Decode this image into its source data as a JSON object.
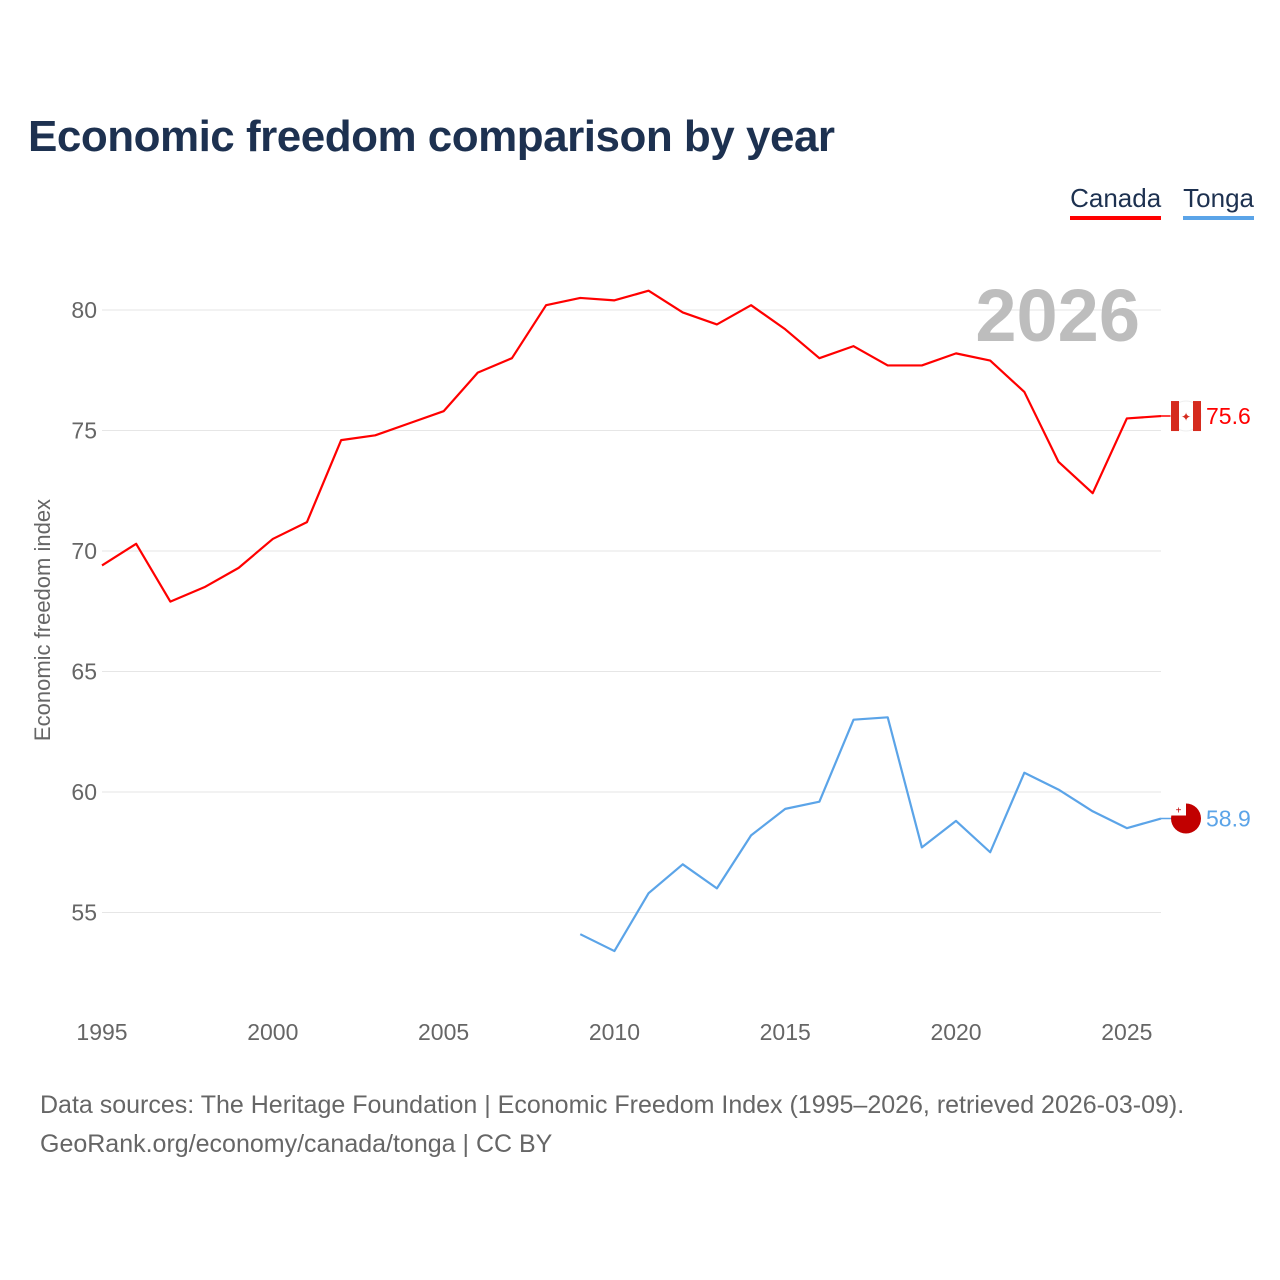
{
  "title": "Economic freedom comparison by year",
  "footer": {
    "line1": "Data sources: The Heritage Foundation | Economic Freedom Index (1995–2026, retrieved 2026-03-09).",
    "line2": "GeoRank.org/economy/canada/tonga | CC BY"
  },
  "chart_data": {
    "type": "line",
    "title": "Economic freedom comparison by year",
    "xlabel": "",
    "ylabel": "Economic freedom index",
    "xlim": [
      1995,
      2026
    ],
    "ylim": [
      51,
      83
    ],
    "x_ticks": [
      "1995",
      "2000",
      "2005",
      "2010",
      "2015",
      "2020",
      "2025"
    ],
    "y_ticks": [
      "55",
      "60",
      "65",
      "70",
      "75",
      "80"
    ],
    "grid": true,
    "legend": "top-right",
    "year_label": "2026",
    "series": [
      {
        "name": "Canada",
        "color": "#ff0000",
        "end_label": "75.6",
        "x": [
          1995,
          1996,
          1997,
          1998,
          1999,
          2000,
          2001,
          2002,
          2003,
          2004,
          2005,
          2006,
          2007,
          2008,
          2009,
          2010,
          2011,
          2012,
          2013,
          2014,
          2015,
          2016,
          2017,
          2018,
          2019,
          2020,
          2021,
          2022,
          2023,
          2024,
          2025,
          2026
        ],
        "values": [
          69.4,
          70.3,
          67.9,
          68.5,
          69.3,
          70.5,
          71.2,
          74.6,
          74.8,
          75.3,
          75.8,
          77.4,
          78.0,
          80.2,
          80.5,
          80.4,
          80.8,
          79.9,
          79.4,
          80.2,
          79.2,
          78.0,
          78.5,
          77.7,
          77.7,
          78.2,
          77.9,
          76.6,
          73.7,
          72.4,
          75.5,
          75.6
        ]
      },
      {
        "name": "Tonga",
        "color": "#5ba4e8",
        "end_label": "58.9",
        "x": [
          2009,
          2010,
          2011,
          2012,
          2013,
          2014,
          2015,
          2016,
          2017,
          2018,
          2019,
          2020,
          2021,
          2022,
          2023,
          2024,
          2025,
          2026
        ],
        "values": [
          54.1,
          53.4,
          55.8,
          57.0,
          56.0,
          58.2,
          59.3,
          59.6,
          63.0,
          63.1,
          57.7,
          58.8,
          57.5,
          60.8,
          60.1,
          59.2,
          58.5,
          58.9
        ]
      }
    ]
  }
}
